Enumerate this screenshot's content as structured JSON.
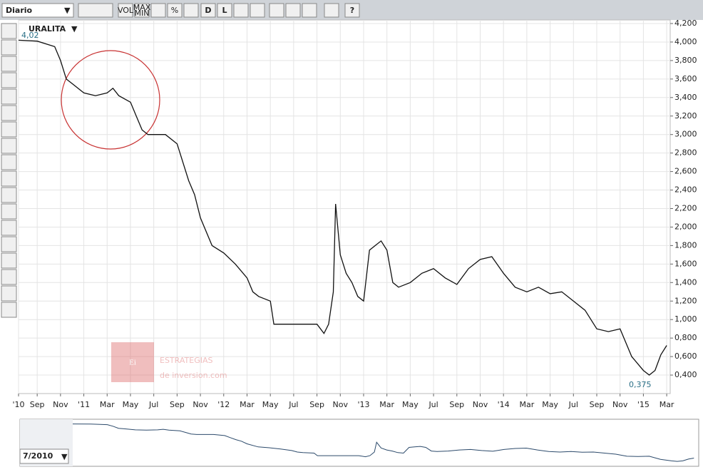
{
  "toolbar": {
    "period": "Diario",
    "vol": "VOL",
    "max": "MAX",
    "min": "MIN",
    "d": "D",
    "l": "L",
    "help": "?"
  },
  "navigator": {
    "start": "7/2010"
  },
  "watermark": {
    "logo": "Ei",
    "line1": "ESTRATEGIAS",
    "line2": "de inversion.com"
  },
  "chart_data": {
    "type": "line",
    "title": "URALITA",
    "annotations": [
      {
        "text": "4,02"
      },
      {
        "text": "0,375"
      }
    ],
    "color": "#111111",
    "grid": true,
    "x": [
      6.4,
      8,
      9.5,
      10,
      10.5,
      11,
      12,
      13,
      14,
      14.5,
      15,
      16,
      16.5,
      17,
      17.5,
      19,
      20,
      20.5,
      21,
      21.5,
      22,
      23,
      24,
      25,
      26,
      26.5,
      27,
      28,
      28.3,
      29,
      31,
      32,
      32.6,
      33,
      33.4,
      33.6,
      34,
      34.5,
      35,
      35.5,
      36,
      36.5,
      37,
      37.5,
      38,
      38.5,
      39,
      40,
      41,
      42,
      43,
      44,
      45,
      46,
      47,
      48,
      49,
      50,
      51,
      52,
      53,
      54,
      55,
      56,
      57,
      58,
      59,
      60,
      60.5,
      61,
      61.5,
      62
    ],
    "values": [
      4.02,
      4.01,
      3.95,
      3.8,
      3.6,
      3.55,
      3.45,
      3.42,
      3.45,
      3.5,
      3.42,
      3.35,
      3.2,
      3.05,
      3.0,
      3.0,
      2.9,
      2.7,
      2.5,
      2.35,
      2.1,
      1.8,
      1.72,
      1.6,
      1.45,
      1.3,
      1.25,
      1.2,
      0.95,
      0.95,
      0.95,
      0.95,
      0.85,
      0.95,
      1.3,
      2.25,
      1.7,
      1.5,
      1.4,
      1.25,
      1.2,
      1.75,
      1.8,
      1.85,
      1.75,
      1.4,
      1.35,
      1.4,
      1.5,
      1.55,
      1.45,
      1.38,
      1.55,
      1.65,
      1.68,
      1.5,
      1.35,
      1.3,
      1.35,
      1.28,
      1.3,
      1.2,
      1.1,
      0.9,
      0.87,
      0.9,
      0.6,
      0.45,
      0.4,
      0.45,
      0.62,
      0.72
    ],
    "xlim": [
      6.4,
      62.3
    ],
    "xticks": [
      {
        "value": 6.4,
        "label": "'10"
      },
      {
        "value": 8,
        "label": "Sep"
      },
      {
        "value": 10,
        "label": "Nov"
      },
      {
        "value": 12,
        "label": "'11"
      },
      {
        "value": 14,
        "label": "Mar"
      },
      {
        "value": 16,
        "label": "May"
      },
      {
        "value": 18,
        "label": "Jul"
      },
      {
        "value": 20,
        "label": "Sep"
      },
      {
        "value": 22,
        "label": "Nov"
      },
      {
        "value": 24,
        "label": "'12"
      },
      {
        "value": 26,
        "label": "Mar"
      },
      {
        "value": 28,
        "label": "May"
      },
      {
        "value": 30,
        "label": "Jul"
      },
      {
        "value": 32,
        "label": "Sep"
      },
      {
        "value": 34,
        "label": "Nov"
      },
      {
        "value": 36,
        "label": "'13"
      },
      {
        "value": 38,
        "label": "Mar"
      },
      {
        "value": 40,
        "label": "May"
      },
      {
        "value": 42,
        "label": "Jul"
      },
      {
        "value": 44,
        "label": "Sep"
      },
      {
        "value": 46,
        "label": "Nov"
      },
      {
        "value": 48,
        "label": "'14"
      },
      {
        "value": 50,
        "label": "Mar"
      },
      {
        "value": 52,
        "label": "May"
      },
      {
        "value": 54,
        "label": "Jul"
      },
      {
        "value": 56,
        "label": "Sep"
      },
      {
        "value": 58,
        "label": "Nov"
      },
      {
        "value": 60,
        "label": "'15"
      },
      {
        "value": 62,
        "label": "Mar"
      }
    ],
    "ylim": [
      0.2,
      4.2
    ],
    "yticks": [
      {
        "value": 0.4,
        "label": "0,400"
      },
      {
        "value": 0.6,
        "label": "0,600"
      },
      {
        "value": 0.8,
        "label": "0,800"
      },
      {
        "value": 1.0,
        "label": "1,000"
      },
      {
        "value": 1.2,
        "label": "1,200"
      },
      {
        "value": 1.4,
        "label": "1,400"
      },
      {
        "value": 1.6,
        "label": "1,600"
      },
      {
        "value": 1.8,
        "label": "1,800"
      },
      {
        "value": 2.0,
        "label": "2,000"
      },
      {
        "value": 2.2,
        "label": "2,200"
      },
      {
        "value": 2.4,
        "label": "2,400"
      },
      {
        "value": 2.6,
        "label": "2,600"
      },
      {
        "value": 2.8,
        "label": "2,800"
      },
      {
        "value": 3.0,
        "label": "3,000"
      },
      {
        "value": 3.2,
        "label": "3,200"
      },
      {
        "value": 3.4,
        "label": "3,400"
      },
      {
        "value": 3.6,
        "label": "3,600"
      },
      {
        "value": 3.8,
        "label": "3,800"
      },
      {
        "value": 4.0,
        "label": "4,000"
      },
      {
        "value": 4.2,
        "label": "4,200"
      }
    ]
  }
}
